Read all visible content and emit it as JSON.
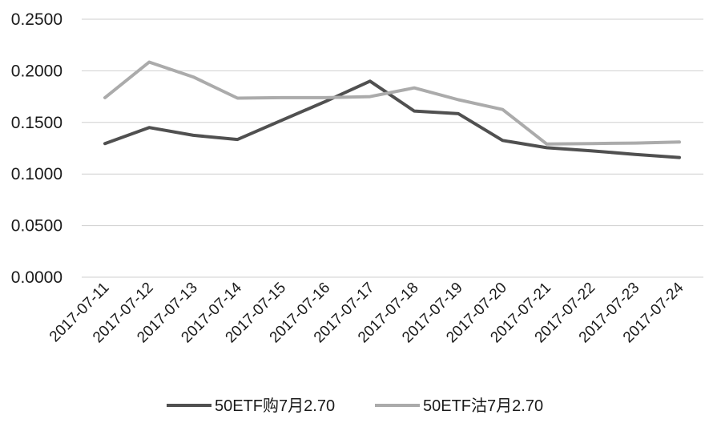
{
  "chart_data": {
    "type": "line",
    "title": "",
    "xlabel": "",
    "ylabel": "",
    "categories": [
      "2017-07-11",
      "2017-07-12",
      "2017-07-13",
      "2017-07-14",
      "2017-07-15",
      "2017-07-16",
      "2017-07-17",
      "2017-07-18",
      "2017-07-19",
      "2017-07-20",
      "2017-07-21",
      "2017-07-22",
      "2017-07-23",
      "2017-07-24"
    ],
    "y_ticks": [
      "0.0000",
      "0.0500",
      "0.1000",
      "0.1500",
      "0.2000",
      "0.2500"
    ],
    "ylim": [
      0,
      0.25
    ],
    "grid": true,
    "legend_position": "bottom",
    "series": [
      {
        "name": "50ETF购7月2.70",
        "color": "#505050",
        "values": [
          0.1295,
          0.145,
          0.1375,
          0.1335,
          0.152,
          0.1705,
          0.19,
          0.161,
          0.1585,
          0.1325,
          0.1255,
          0.1225,
          0.119,
          0.116
        ]
      },
      {
        "name": "50ETF沽7月2.70",
        "color": "#ababab",
        "values": [
          0.174,
          0.2085,
          0.194,
          0.1735,
          0.174,
          0.174,
          0.175,
          0.1835,
          0.172,
          0.1625,
          0.129,
          0.1295,
          0.13,
          0.131
        ]
      }
    ]
  }
}
